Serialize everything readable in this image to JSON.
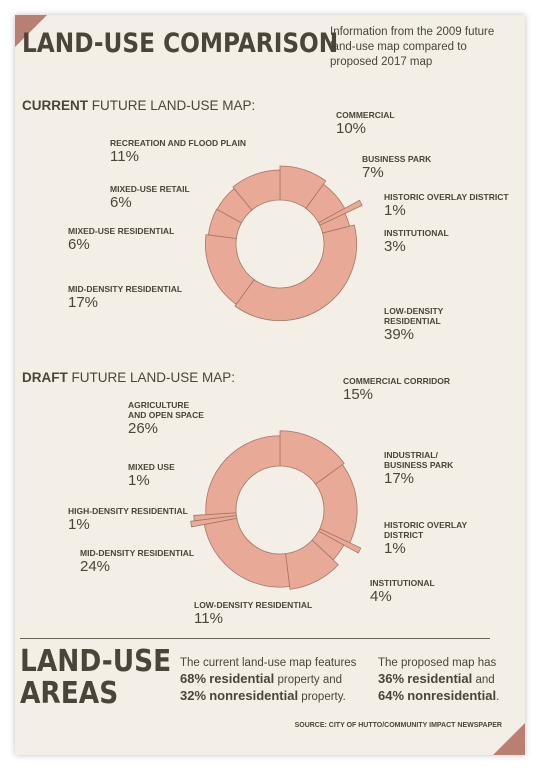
{
  "header": {
    "title": "LAND-USE COMPARISON",
    "subtitle": "Information from the 2009 future land-use map compared to proposed 2017 map"
  },
  "colors": {
    "background": "#f4efe6",
    "slice_fill": "#e8a997",
    "slice_stroke": "#a77566",
    "text": "#4a4439",
    "corner": "#b98072"
  },
  "chart_data": [
    {
      "type": "pie",
      "title_bold": "CURRENT",
      "title_rest": "FUTURE LAND-USE MAP:",
      "slices": [
        {
          "label": "COMMERCIAL",
          "pct_text": "10%",
          "value": 10,
          "radius_factor": 1.0
        },
        {
          "label": "BUSINESS PARK",
          "pct_text": "7%",
          "value": 7,
          "radius_factor": 0.88
        },
        {
          "label": "HISTORIC OVERLAY DISTRICT",
          "pct_text": "1%",
          "value": 1,
          "radius_factor": 1.08
        },
        {
          "label": "INSTITUTIONAL",
          "pct_text": "3%",
          "value": 3,
          "radius_factor": 0.82
        },
        {
          "label": "LOW-DENSITY RESIDENTIAL",
          "pct_text": "39%",
          "value": 39,
          "radius_factor": 0.96
        },
        {
          "label": "MID-DENSITY RESIDENTIAL",
          "pct_text": "17%",
          "value": 17,
          "radius_factor": 0.9
        },
        {
          "label": "MIXED-USE RESIDENTIAL",
          "pct_text": "6%",
          "value": 6,
          "radius_factor": 0.83
        },
        {
          "label": "MIXED-USE RETAIL",
          "pct_text": "6%",
          "value": 6,
          "radius_factor": 0.82
        },
        {
          "label": "RECREATION AND FLOOD PLAIN",
          "pct_text": "11%",
          "value": 11,
          "radius_factor": 0.88
        }
      ]
    },
    {
      "type": "pie",
      "title_bold": "DRAFT",
      "title_rest": "FUTURE LAND-USE MAP:",
      "slices": [
        {
          "label": "COMMERCIAL CORRIDOR",
          "pct_text": "15%",
          "value": 15,
          "radius_factor": 0.98
        },
        {
          "label": "INDUSTRIAL/ BUSINESS PARK",
          "pct_text": "17%",
          "value": 17,
          "radius_factor": 0.92
        },
        {
          "label": "HISTORIC OVERLAY DISTRICT",
          "pct_text": "1%",
          "value": 1,
          "radius_factor": 0.98
        },
        {
          "label": "INSTITUTIONAL",
          "pct_text": "4%",
          "value": 4,
          "radius_factor": 0.8
        },
        {
          "label": "LOW-DENSITY RESIDENTIAL",
          "pct_text": "11%",
          "value": 11,
          "radius_factor": 1.0
        },
        {
          "label": "MID-DENSITY RESIDENTIAL",
          "pct_text": "24%",
          "value": 24,
          "radius_factor": 0.92
        },
        {
          "label": "HIGH-DENSITY RESIDENTIAL",
          "pct_text": "1%",
          "value": 1,
          "radius_factor": 1.0
        },
        {
          "label": "MIXED USE",
          "pct_text": "1%",
          "value": 1,
          "radius_factor": 0.9
        },
        {
          "label": "AGRICULTURE AND OPEN SPACE",
          "pct_text": "26%",
          "value": 26,
          "radius_factor": 0.84
        }
      ]
    }
  ],
  "areas": {
    "title_line1": "LAND-USE",
    "title_line2": "AREAS",
    "current_pre": "The current land-use map features",
    "current_res_pct": "68%",
    "current_res_word": "residential",
    "current_mid": "property and",
    "current_non_pct": "32%",
    "current_non_word": "nonresidential",
    "current_post": "property.",
    "proposed_pre": "The proposed map has",
    "proposed_res_pct": "36%",
    "proposed_res_word": "residential",
    "proposed_mid": "and",
    "proposed_non_pct": "64%",
    "proposed_non_word": "nonresidential",
    "proposed_post": "."
  },
  "source": "SOURCE: CITY OF HUTTO/COMMUNITY IMPACT NEWSPAPER"
}
